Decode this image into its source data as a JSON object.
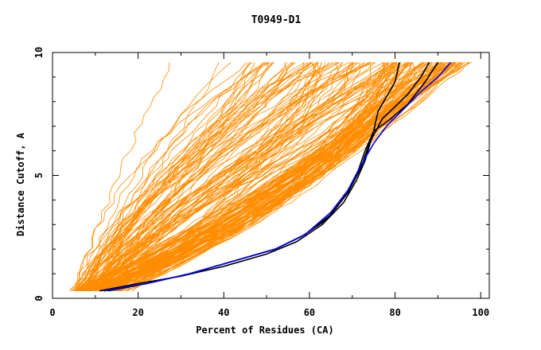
{
  "chart_data": {
    "type": "line",
    "title": "T0949-D1",
    "xlabel": "Percent of Residues (CA)",
    "ylabel": "Distance Cutoff, A",
    "xlim": [
      0,
      102
    ],
    "ylim": [
      0,
      10
    ],
    "xticks": [
      0,
      20,
      40,
      60,
      80,
      100
    ],
    "yticks": [
      0,
      5,
      10
    ],
    "grid": false,
    "legend": "none",
    "colors": {
      "models": "#ff8c00",
      "highlight": "#000000",
      "reference": "#0000ff"
    },
    "series": [
      {
        "color": "#000000",
        "points": [
          [
            11,
            0.3
          ],
          [
            20,
            0.6
          ],
          [
            30,
            0.9
          ],
          [
            40,
            1.3
          ],
          [
            50,
            1.8
          ],
          [
            57,
            2.3
          ],
          [
            63,
            3.0
          ],
          [
            68,
            3.9
          ],
          [
            71,
            4.8
          ],
          [
            73,
            5.6
          ],
          [
            75,
            6.8
          ],
          [
            76,
            7.6
          ],
          [
            78,
            8.2
          ],
          [
            80,
            8.8
          ],
          [
            81,
            9.6
          ]
        ]
      },
      {
        "color": "#000000",
        "points": [
          [
            12,
            0.3
          ],
          [
            22,
            0.6
          ],
          [
            32,
            1.0
          ],
          [
            42,
            1.5
          ],
          [
            52,
            2.0
          ],
          [
            59,
            2.6
          ],
          [
            65,
            3.4
          ],
          [
            69,
            4.3
          ],
          [
            72,
            5.3
          ],
          [
            74,
            6.3
          ],
          [
            77,
            7.3
          ],
          [
            80,
            7.8
          ],
          [
            83,
            8.3
          ],
          [
            86,
            9.0
          ],
          [
            88,
            9.6
          ]
        ]
      },
      {
        "color": "#000000",
        "points": [
          [
            13,
            0.3
          ],
          [
            22,
            0.6
          ],
          [
            32,
            1.0
          ],
          [
            42,
            1.5
          ],
          [
            52,
            2.0
          ],
          [
            58,
            2.5
          ],
          [
            64,
            3.2
          ],
          [
            68,
            4.1
          ],
          [
            71,
            5.0
          ],
          [
            73,
            6.0
          ],
          [
            75,
            6.8
          ],
          [
            79,
            7.3
          ],
          [
            83,
            7.9
          ],
          [
            87,
            8.8
          ],
          [
            90,
            9.6
          ]
        ]
      },
      {
        "color": "#0000ff",
        "points": [
          [
            12,
            0.3
          ],
          [
            22,
            0.6
          ],
          [
            32,
            1.0
          ],
          [
            42,
            1.5
          ],
          [
            52,
            2.0
          ],
          [
            59,
            2.6
          ],
          [
            65,
            3.5
          ],
          [
            69,
            4.4
          ],
          [
            72,
            5.4
          ],
          [
            75,
            6.3
          ],
          [
            78,
            7.0
          ],
          [
            82,
            7.7
          ],
          [
            86,
            8.4
          ],
          [
            90,
            9.0
          ],
          [
            93,
            9.6
          ]
        ]
      }
    ]
  }
}
